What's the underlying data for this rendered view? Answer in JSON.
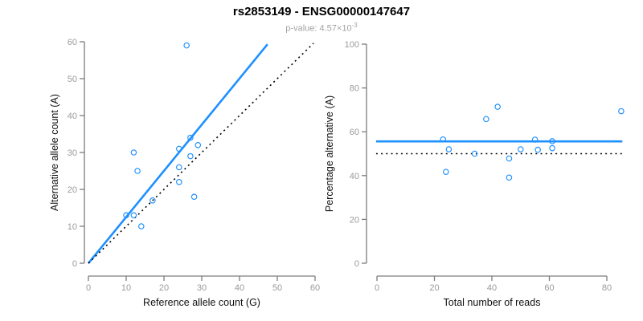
{
  "header": {
    "title": "rs2853149 - ENSG00000147647",
    "subtitle_prefix": "p-value: 4.57×10",
    "subtitle_exponent": "-3"
  },
  "colors": {
    "point_blue": "#1E90FF",
    "line_blue": "#1E90FF",
    "dotted_black": "#000000",
    "axis_line": "#7d7d7d",
    "tick_text": "#9a9a9a",
    "axis_label_text": "#111111",
    "title_text": "#000000",
    "subtitle_text": "#a3a3a3"
  },
  "chart_data": [
    {
      "type": "scatter",
      "name": "allele-counts-scatter",
      "xlabel": "Reference allele count (G)",
      "ylabel": "Alternative allele count (A)",
      "xlim": [
        0,
        60
      ],
      "ylim": [
        0,
        60
      ],
      "xticks": [
        0,
        10,
        20,
        30,
        40,
        50,
        60
      ],
      "yticks": [
        0,
        10,
        20,
        30,
        40,
        50,
        60
      ],
      "grid": false,
      "legend": false,
      "points": [
        [
          26,
          59
        ],
        [
          12,
          30
        ],
        [
          13,
          25
        ],
        [
          24,
          31
        ],
        [
          27,
          34
        ],
        [
          29,
          32
        ],
        [
          27,
          29
        ],
        [
          24,
          26
        ],
        [
          24,
          22
        ],
        [
          28,
          18
        ],
        [
          10,
          13
        ],
        [
          12,
          13
        ],
        [
          14,
          10
        ],
        [
          17,
          17
        ]
      ],
      "lines": [
        {
          "name": "fitted-allelic-ratio-line",
          "x1": 0,
          "y1": 0,
          "x2": 47.4,
          "y2": 59.3,
          "color": "blue",
          "dash": false
        },
        {
          "name": "identity-line",
          "x1": 0,
          "y1": 0,
          "x2": 59.6,
          "y2": 59.6,
          "color": "black",
          "dash": true
        }
      ]
    },
    {
      "type": "scatter",
      "name": "percentage-vs-coverage-scatter",
      "xlabel": "Total number of reads",
      "ylabel": "Percentage alternative (A)",
      "xlim": [
        0,
        86
      ],
      "ylim": [
        0,
        100
      ],
      "xticks": [
        0,
        20,
        40,
        60,
        80
      ],
      "yticks": [
        0,
        20,
        40,
        60,
        80,
        100
      ],
      "grid": false,
      "legend": false,
      "points": [
        [
          23,
          56.5
        ],
        [
          25,
          52
        ],
        [
          34,
          50
        ],
        [
          38,
          65.8
        ],
        [
          42,
          71.4
        ],
        [
          46,
          47.8
        ],
        [
          46,
          39.1
        ],
        [
          50,
          52
        ],
        [
          55,
          56.4
        ],
        [
          56,
          51.8
        ],
        [
          61,
          55.7
        ],
        [
          61,
          52.5
        ],
        [
          24,
          41.7
        ],
        [
          85,
          69.4
        ]
      ],
      "lines": [
        {
          "name": "mean-percentage-line",
          "x1": -0.3,
          "y1": 55.6,
          "x2": 85.4,
          "y2": 55.6,
          "color": "blue",
          "dash": false
        },
        {
          "name": "fifty-percent-line",
          "x1": -0.3,
          "y1": 50,
          "x2": 85.4,
          "y2": 50,
          "color": "black",
          "dash": true
        }
      ]
    }
  ]
}
